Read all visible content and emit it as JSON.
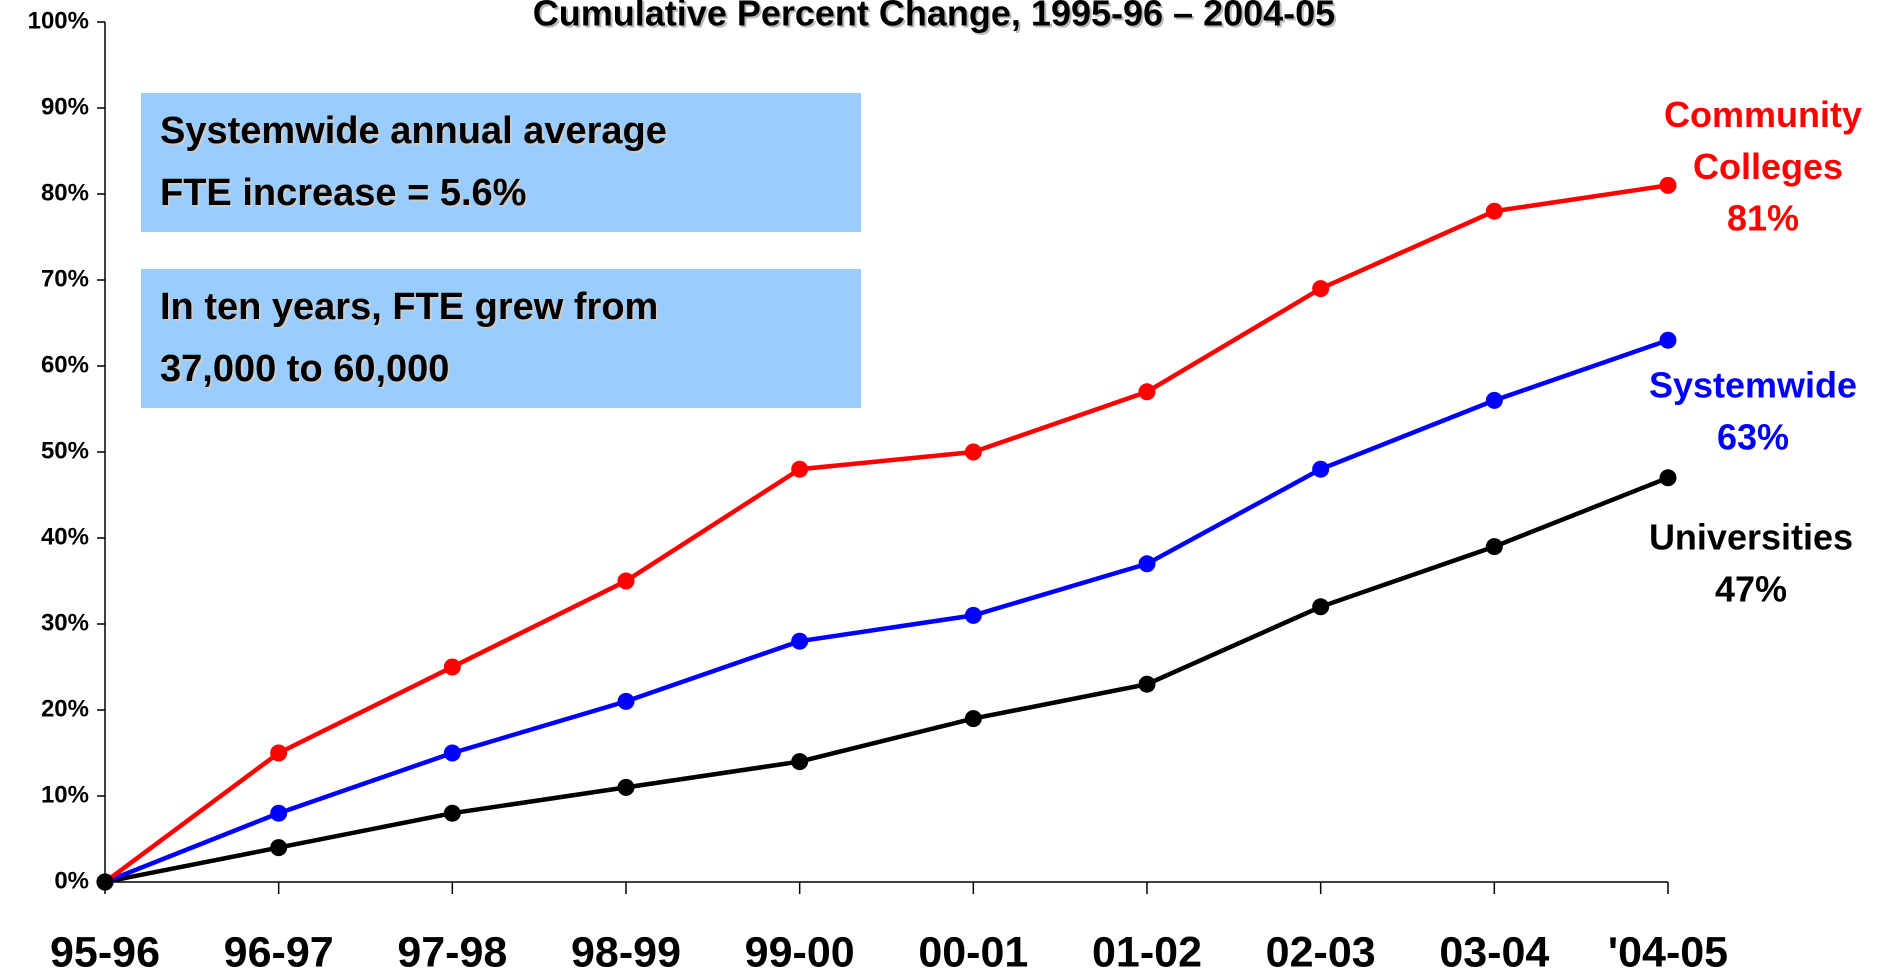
{
  "chart_data": {
    "type": "line",
    "title": "Cumulative Percent Change, 1995-96 – 2004-05",
    "annotations": [
      [
        "Systemwide annual average",
        "FTE increase = 5.6%"
      ],
      [
        "In ten years, FTE grew from",
        "37,000 to 60,000"
      ]
    ],
    "categories": [
      "95-96",
      "96-97",
      "97-98",
      "98-99",
      "99-00",
      "00-01",
      "01-02",
      "02-03",
      "03-04",
      "'04-05"
    ],
    "series": [
      {
        "name": "Community Colleges",
        "color": "#ff0000",
        "values": [
          0,
          15,
          25,
          35,
          48,
          50,
          57,
          69,
          78,
          81
        ],
        "value_labels": [
          null,
          null,
          null,
          null,
          null,
          null,
          null,
          null,
          null,
          "81%"
        ]
      },
      {
        "name": "Systemwide",
        "color": "#0000ff",
        "values": [
          0,
          8,
          15,
          21,
          28,
          31,
          37,
          48,
          56,
          63
        ],
        "value_labels": [
          null,
          null,
          null,
          null,
          null,
          null,
          null,
          null,
          null,
          "63%"
        ]
      },
      {
        "name": "Universities",
        "color": "#000000",
        "values": [
          0,
          4,
          8,
          11,
          14,
          19,
          23,
          32,
          39,
          47
        ],
        "value_labels": [
          null,
          null,
          null,
          null,
          null,
          null,
          null,
          null,
          null,
          "47%"
        ]
      }
    ],
    "ylim": [
      0,
      100
    ],
    "yticks": [
      {
        "value": 0,
        "label": "0%"
      },
      {
        "value": 10,
        "label": "10%"
      },
      {
        "value": 20,
        "label": "20%"
      },
      {
        "value": 30,
        "label": "30%"
      },
      {
        "value": 40,
        "label": "40%"
      },
      {
        "value": 50,
        "label": "50%"
      },
      {
        "value": 60,
        "label": "60%"
      },
      {
        "value": 70,
        "label": "70%"
      },
      {
        "value": 80,
        "label": "80%"
      },
      {
        "value": 90,
        "label": "90%"
      },
      {
        "value": 100,
        "label": "100%"
      }
    ],
    "grid": false
  }
}
